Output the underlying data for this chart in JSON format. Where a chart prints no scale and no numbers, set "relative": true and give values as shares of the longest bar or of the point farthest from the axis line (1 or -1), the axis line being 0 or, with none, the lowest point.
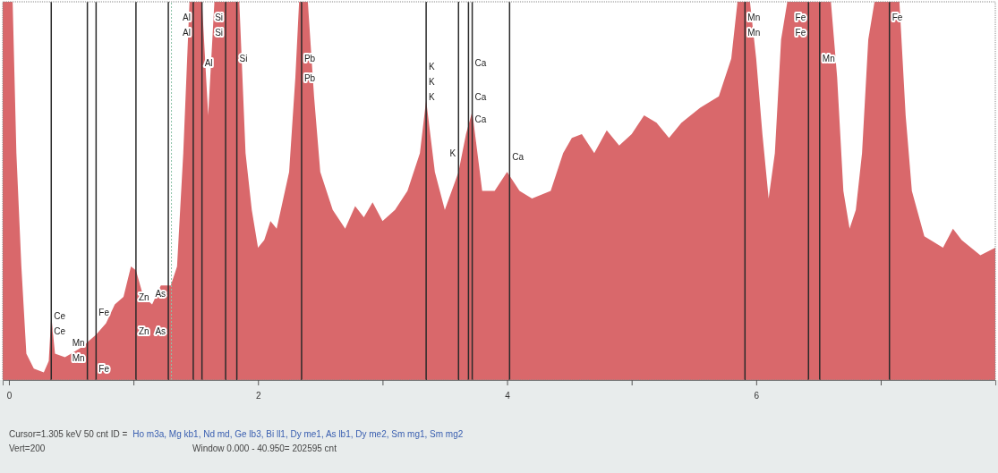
{
  "chart_data": {
    "type": "area",
    "relative": true,
    "color": "#d9686b",
    "x": [
      -0.05,
      0,
      0.03,
      0.06,
      0.1,
      0.14,
      0.2,
      0.28,
      0.32,
      0.34,
      0.37,
      0.45,
      0.5,
      0.55,
      0.6,
      0.63,
      0.7,
      0.78,
      0.85,
      0.92,
      0.98,
      1.02,
      1.08,
      1.15,
      1.22,
      1.3,
      1.35,
      1.4,
      1.45,
      1.55,
      1.6,
      1.65,
      1.85,
      1.9,
      1.95,
      2.0,
      2.05,
      2.1,
      2.15,
      2.25,
      2.3,
      2.33,
      2.4,
      2.45,
      2.5,
      2.6,
      2.7,
      2.78,
      2.85,
      2.92,
      3.0,
      3.1,
      3.2,
      3.3,
      3.35,
      3.42,
      3.5,
      3.61,
      3.67,
      3.72,
      3.8,
      3.9,
      4.0,
      4.1,
      4.2,
      4.35,
      4.45,
      4.52,
      4.6,
      4.7,
      4.8,
      4.9,
      5.0,
      5.1,
      5.2,
      5.3,
      5.4,
      5.55,
      5.7,
      5.8,
      5.85,
      5.95,
      6.0,
      6.05,
      6.1,
      6.15,
      6.2,
      6.25,
      6.6,
      6.65,
      6.7,
      6.75,
      6.8,
      6.85,
      6.9,
      6.95,
      7.15,
      7.2,
      7.25,
      7.35,
      7.5,
      7.58,
      7.65,
      7.8,
      7.92
    ],
    "values": [
      1,
      1,
      1,
      0.6,
      0.3,
      0.07,
      0.03,
      0.02,
      0.05,
      0.17,
      0.07,
      0.06,
      0.07,
      0.08,
      0.09,
      0.1,
      0.12,
      0.15,
      0.2,
      0.22,
      0.3,
      0.29,
      0.22,
      0.2,
      0.25,
      0.25,
      0.3,
      0.6,
      1,
      1,
      0.7,
      1,
      1,
      0.6,
      0.45,
      0.35,
      0.37,
      0.42,
      0.4,
      0.55,
      0.8,
      1,
      1,
      0.75,
      0.55,
      0.45,
      0.4,
      0.46,
      0.43,
      0.47,
      0.42,
      0.45,
      0.5,
      0.6,
      0.74,
      0.55,
      0.45,
      0.55,
      0.65,
      0.71,
      0.5,
      0.5,
      0.55,
      0.5,
      0.48,
      0.5,
      0.6,
      0.64,
      0.65,
      0.6,
      0.66,
      0.62,
      0.65,
      0.7,
      0.68,
      0.64,
      0.68,
      0.72,
      0.75,
      0.85,
      1,
      1,
      0.85,
      0.65,
      0.48,
      0.6,
      0.9,
      1,
      1,
      0.8,
      0.5,
      0.4,
      0.45,
      0.6,
      0.9,
      1,
      1,
      0.7,
      0.5,
      0.38,
      0.35,
      0.4,
      0.37,
      0.33,
      0.35
    ],
    "xlim": [
      -0.05,
      7.92
    ],
    "xticks": [
      0,
      {
        "value": 1,
        "label": null
      },
      2,
      {
        "value": 3,
        "label": null
      },
      4,
      {
        "value": 5,
        "label": null
      },
      6,
      {
        "value": 7,
        "label": null
      }
    ],
    "ref_lines": [
      {
        "axis": "x",
        "value": 0.34
      },
      {
        "axis": "x",
        "value": 0.63
      },
      {
        "axis": "x",
        "value": 0.7
      },
      {
        "axis": "x",
        "value": 1.02
      },
      {
        "axis": "x",
        "value": 1.28
      },
      {
        "axis": "x",
        "value": 1.305,
        "color": "#8cc4a8",
        "line_style": "dotted"
      },
      {
        "axis": "x",
        "value": 1.48
      },
      {
        "axis": "x",
        "value": 1.55
      },
      {
        "axis": "x",
        "value": 1.74
      },
      {
        "axis": "x",
        "value": 1.83
      },
      {
        "axis": "x",
        "value": 2.35
      },
      {
        "axis": "x",
        "value": 3.35
      },
      {
        "axis": "x",
        "value": 3.61
      },
      {
        "axis": "x",
        "value": 3.69
      },
      {
        "axis": "x",
        "value": 3.72
      },
      {
        "axis": "x",
        "value": 4.02
      },
      {
        "axis": "x",
        "value": 5.91
      },
      {
        "axis": "x",
        "value": 6.42
      },
      {
        "axis": "x",
        "value": 6.51
      },
      {
        "axis": "x",
        "value": 7.07
      }
    ],
    "annotations": [
      "Cursor=1.305 keV  50 cnt  ID =",
      "Ho m3a, Mg kb1, Nd md, Ge lb3, Bi ll1, Dy me1, As lb1, Dy me2, Sm mg1, Sm mg2",
      "Vert=200",
      "Window 0.000 - 40.950=  202595 cnt",
      {
        "text": "Ce",
        "x": 0.34,
        "y": 0.17
      },
      {
        "text": "Ce",
        "x": 0.34,
        "y": 0.13
      },
      {
        "text": "Fe",
        "x": 0.7,
        "y": 0.18
      },
      {
        "text": "Mn",
        "x": 0.63,
        "y": 0.1
      },
      {
        "text": "Mn",
        "x": 0.63,
        "y": 0.06
      },
      {
        "text": "Fe",
        "x": 0.7,
        "y": 0.03
      },
      {
        "text": "Zn",
        "x": 1.02,
        "y": 0.22
      },
      {
        "text": "Zn",
        "x": 1.02,
        "y": 0.13
      },
      {
        "text": "As",
        "x": 1.28,
        "y": 0.23
      },
      {
        "text": "As",
        "x": 1.28,
        "y": 0.13
      },
      {
        "text": "Al",
        "x": 1.48,
        "y": 0.96
      },
      {
        "text": "Al",
        "x": 1.48,
        "y": 0.92
      },
      {
        "text": "Al",
        "x": 1.55,
        "y": 0.84
      },
      {
        "text": "Si",
        "x": 1.74,
        "y": 0.96
      },
      {
        "text": "Si",
        "x": 1.74,
        "y": 0.92
      },
      {
        "text": "Si",
        "x": 1.83,
        "y": 0.85
      },
      {
        "text": "Pb",
        "x": 2.35,
        "y": 0.85
      },
      {
        "text": "Pb",
        "x": 2.35,
        "y": 0.8
      },
      {
        "text": "K",
        "x": 3.35,
        "y": 0.83
      },
      {
        "text": "K",
        "x": 3.35,
        "y": 0.79
      },
      {
        "text": "K",
        "x": 3.35,
        "y": 0.75
      },
      {
        "text": "K",
        "x": 3.61,
        "y": 0.6
      },
      {
        "text": "Ca",
        "x": 3.72,
        "y": 0.84
      },
      {
        "text": "Ca",
        "x": 3.72,
        "y": 0.75
      },
      {
        "text": "Ca",
        "x": 3.72,
        "y": 0.69
      },
      {
        "text": "Ca",
        "x": 4.02,
        "y": 0.59
      },
      {
        "text": "Mn",
        "x": 5.91,
        "y": 0.96
      },
      {
        "text": "Mn",
        "x": 5.91,
        "y": 0.92
      },
      {
        "text": "Fe",
        "x": 6.42,
        "y": 0.96
      },
      {
        "text": "Fe",
        "x": 6.42,
        "y": 0.92
      },
      {
        "text": "Mn",
        "x": 6.51,
        "y": 0.85
      },
      {
        "text": "Fe",
        "x": 7.07,
        "y": 0.96
      }
    ]
  }
}
